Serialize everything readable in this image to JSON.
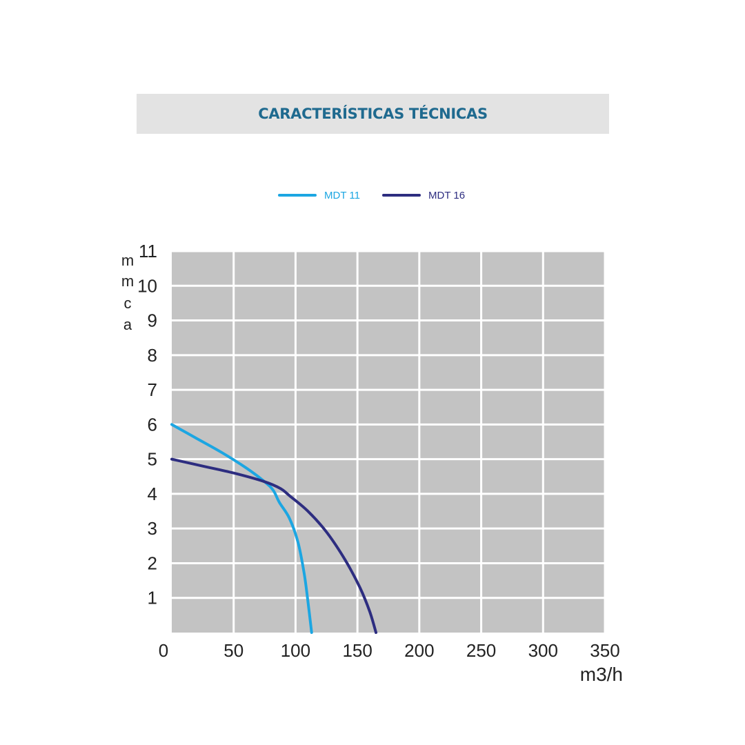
{
  "header": {
    "title": "CARACTERÍSTICAS TÉCNICAS"
  },
  "colors": {
    "header_bg": "#e3e3e3",
    "title": "#1f6a8f",
    "plot_bg": "#c3c3c3",
    "grid": "#ffffff"
  },
  "chart_data": {
    "type": "line",
    "title": "",
    "xlabel": "m3/h",
    "ylabel_letters": [
      "m",
      "m",
      "c",
      "a"
    ],
    "xlim": [
      0,
      350
    ],
    "ylim": [
      0,
      11
    ],
    "x_ticks": [
      0,
      50,
      100,
      150,
      200,
      250,
      300,
      350
    ],
    "y_ticks": [
      1,
      2,
      3,
      4,
      5,
      6,
      7,
      8,
      9,
      10,
      11
    ],
    "grid": true,
    "legend_position": "top-center",
    "series": [
      {
        "name": "MDT 11",
        "color": "#1ca6e2",
        "points": [
          [
            0,
            6.0
          ],
          [
            20,
            5.6
          ],
          [
            40,
            5.2
          ],
          [
            60,
            4.75
          ],
          [
            75,
            4.35
          ],
          [
            82,
            4.1
          ],
          [
            87,
            3.75
          ],
          [
            95,
            3.3
          ],
          [
            102,
            2.6
          ],
          [
            107,
            1.7
          ],
          [
            110,
            0.9
          ],
          [
            113,
            0
          ]
        ]
      },
      {
        "name": "MDT 16",
        "color": "#2d2d80",
        "points": [
          [
            0,
            5.0
          ],
          [
            25,
            4.8
          ],
          [
            50,
            4.6
          ],
          [
            75,
            4.35
          ],
          [
            88,
            4.15
          ],
          [
            95,
            3.95
          ],
          [
            110,
            3.5
          ],
          [
            125,
            2.9
          ],
          [
            140,
            2.1
          ],
          [
            152,
            1.3
          ],
          [
            160,
            0.6
          ],
          [
            165,
            0
          ]
        ]
      }
    ]
  }
}
